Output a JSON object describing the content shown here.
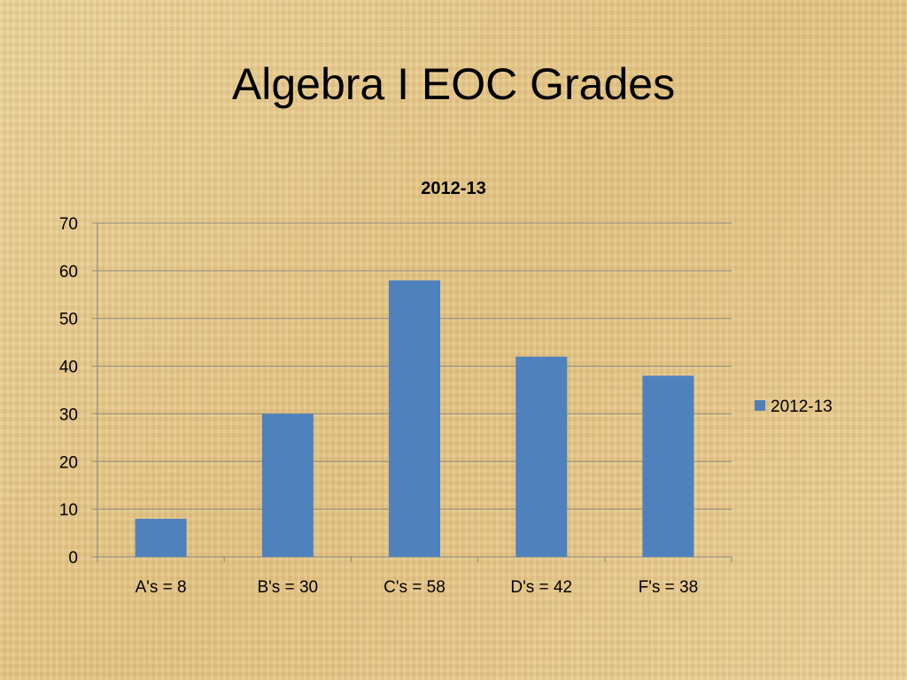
{
  "slide": {
    "title": "Algebra I EOC Grades"
  },
  "colors": {
    "bar": "#4f81bd",
    "grid": "#8c8a80"
  },
  "chart_data": {
    "type": "bar",
    "title": "2012-13",
    "categories": [
      "A's = 8",
      "B's = 30",
      "C's = 58",
      "D's = 42",
      "F's = 38"
    ],
    "series": [
      {
        "name": "2012-13",
        "values": [
          8,
          30,
          58,
          42,
          38
        ]
      }
    ],
    "ylim": [
      0,
      70
    ],
    "yticks": [
      0,
      10,
      20,
      30,
      40,
      50,
      60,
      70
    ],
    "grid": true,
    "legend": "right"
  }
}
